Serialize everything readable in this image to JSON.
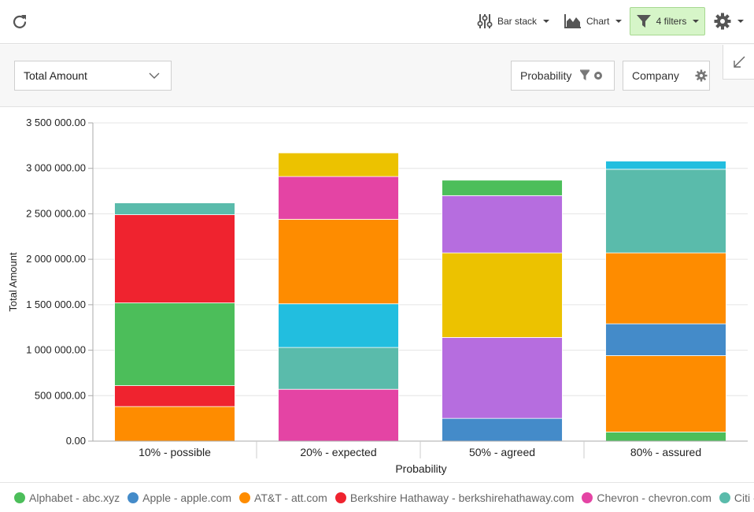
{
  "toolbar": {
    "bar_stack_label": "Bar stack",
    "chart_label": "Chart",
    "filters_label": "4 filters"
  },
  "controls": {
    "measure": "Total Amount",
    "row_field": "Probability",
    "column_field": "Company"
  },
  "colors": {
    "Alphabet": "#4cbe5a",
    "Apple": "#448bc9",
    "ATT": "#fe8c00",
    "Berkshire": "#ef232f",
    "Chevron": "#e444a4",
    "Citi": "#5abbab",
    "Cyan": "#22bedf",
    "Yellow": "#ecc200",
    "Purple": "#b66ddf",
    "filters_bg": "#d6f5c8"
  },
  "legend": [
    {
      "label": "Alphabet - abc.xyz",
      "color": "#4cbe5a"
    },
    {
      "label": "Apple - apple.com",
      "color": "#448bc9"
    },
    {
      "label": "AT&T - att.com",
      "color": "#fe8c00"
    },
    {
      "label": "Berkshire Hathaway - berkshirehathaway.com",
      "color": "#ef232f"
    },
    {
      "label": "Chevron - chevron.com",
      "color": "#e444a4"
    },
    {
      "label": "Citi -",
      "color": "#5abbab"
    }
  ],
  "chart_data": {
    "type": "bar",
    "stacked": true,
    "xlabel": "Probability",
    "ylabel": "Total Amount",
    "ylim": [
      0,
      3500000
    ],
    "yticks": [
      0,
      500000,
      1000000,
      1500000,
      2000000,
      2500000,
      3000000,
      3500000
    ],
    "ytick_labels": [
      "0.00",
      "500 000.00",
      "1 000 000.00",
      "1 500 000.00",
      "2 000 000.00",
      "2 500 000.00",
      "3 000 000.00",
      "3 500 000.00"
    ],
    "categories": [
      "10% - possible",
      "20% - expected",
      "50% - agreed",
      "80% - assured"
    ],
    "grid": true,
    "legend_position": "bottom",
    "stacks": [
      [
        {
          "value": 380000,
          "color": "#fe8c00"
        },
        {
          "value": 230000,
          "color": "#ef232f"
        },
        {
          "value": 910000,
          "color": "#4cbe5a"
        },
        {
          "value": 970000,
          "color": "#ef232f"
        },
        {
          "value": 130000,
          "color": "#5abbab"
        }
      ],
      [
        {
          "value": 570000,
          "color": "#e444a4"
        },
        {
          "value": 460000,
          "color": "#5abbab"
        },
        {
          "value": 480000,
          "color": "#22bedf"
        },
        {
          "value": 930000,
          "color": "#fe8c00"
        },
        {
          "value": 470000,
          "color": "#e444a4"
        },
        {
          "value": 260000,
          "color": "#ecc200"
        }
      ],
      [
        {
          "value": 250000,
          "color": "#448bc9"
        },
        {
          "value": 890000,
          "color": "#b66ddf"
        },
        {
          "value": 930000,
          "color": "#ecc200"
        },
        {
          "value": 630000,
          "color": "#b66ddf"
        },
        {
          "value": 170000,
          "color": "#4cbe5a"
        }
      ],
      [
        {
          "value": 100000,
          "color": "#4cbe5a"
        },
        {
          "value": 840000,
          "color": "#fe8c00"
        },
        {
          "value": 350000,
          "color": "#448bc9"
        },
        {
          "value": 780000,
          "color": "#fe8c00"
        },
        {
          "value": 920000,
          "color": "#5abbab"
        },
        {
          "value": 90000,
          "color": "#22bedf"
        }
      ]
    ]
  }
}
